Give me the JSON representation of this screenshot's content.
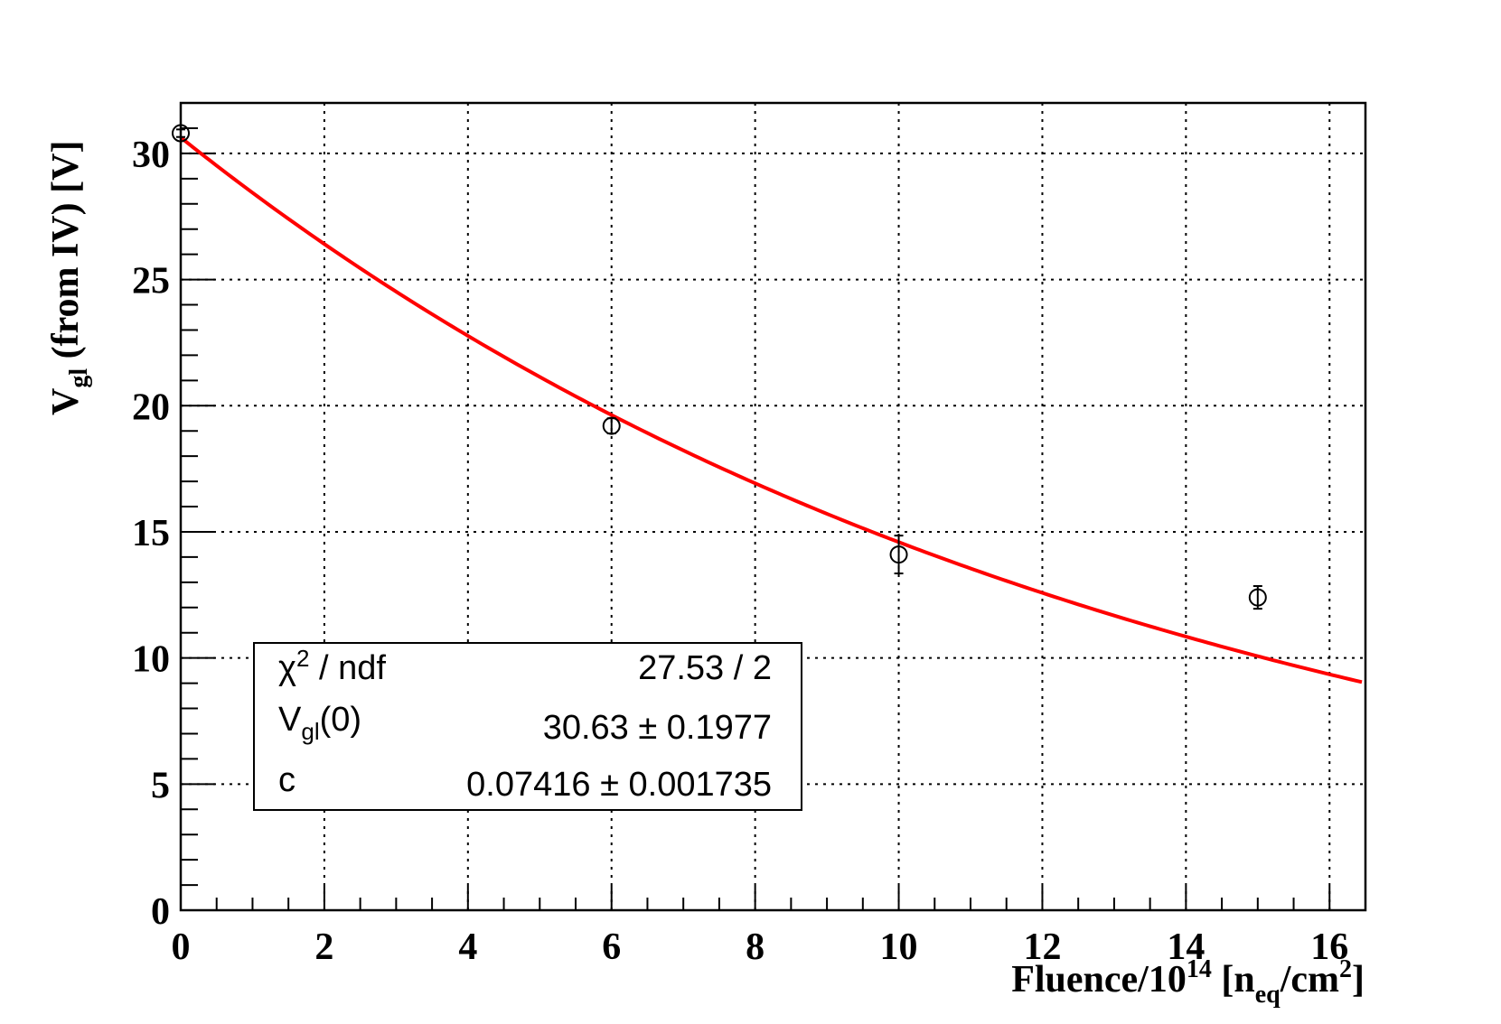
{
  "chart_data": {
    "type": "scatter",
    "title": "",
    "xlabel": {
      "main": "Fluence/10",
      "sup": "14",
      "bracket_open": " [n",
      "sub": "eq",
      "unit": "/cm",
      "unit_sup": "2",
      "bracket_close": "]"
    },
    "ylabel": {
      "main": "V",
      "sub": "gl",
      "rest": " (from IV) [V]"
    },
    "xlim": [
      0,
      16.5
    ],
    "ylim": [
      0,
      32
    ],
    "x_ticks": [
      0,
      2,
      4,
      6,
      8,
      10,
      12,
      14,
      16
    ],
    "y_ticks": [
      0,
      5,
      10,
      15,
      20,
      25,
      30
    ],
    "x_minor_step": 0.5,
    "y_minor_step": 1,
    "grid": true,
    "series": [
      {
        "x": [
          0,
          6,
          10,
          15
        ],
        "y": [
          30.8,
          19.2,
          14.1,
          12.4
        ],
        "y_err": [
          0.15,
          0.3,
          0.75,
          0.45
        ],
        "marker": "open-circle",
        "color": "#000000"
      }
    ],
    "fit": {
      "function": "V0*exp(-c*x)",
      "V0": 30.63,
      "c": 0.07416,
      "x_range": [
        0,
        16.45
      ],
      "color": "#ff0000"
    },
    "stats_box": {
      "rows": [
        {
          "label": "χ",
          "label_sup": "2",
          "label_rest": " / ndf",
          "value": "27.53 / 2"
        },
        {
          "label": "V",
          "label_sub": "gl",
          "label_rest": "(0)",
          "value": "30.63 ± 0.1977"
        },
        {
          "label": "c",
          "value": "0.07416 ± 0.001735"
        }
      ]
    }
  }
}
